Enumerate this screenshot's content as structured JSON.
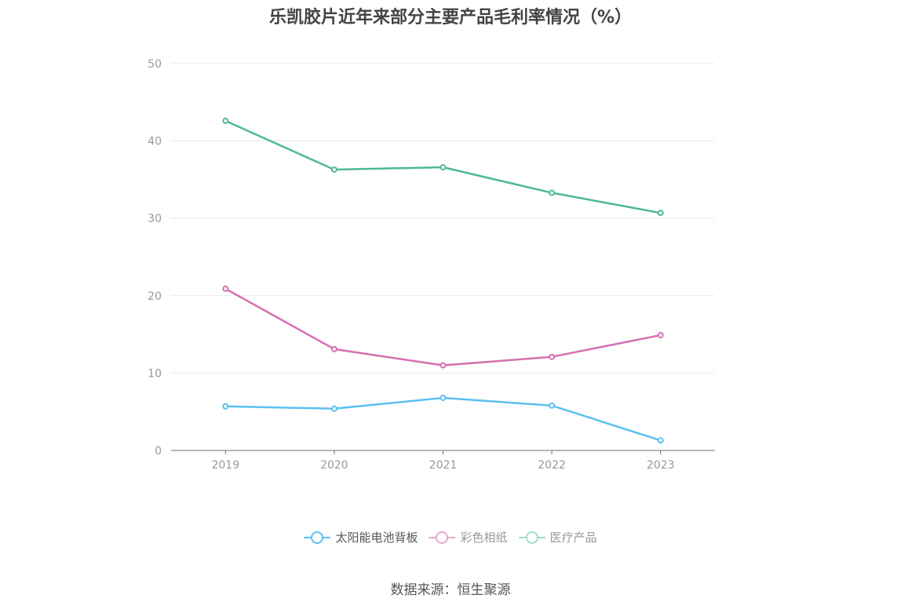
{
  "title": "乐凯胶片近年来部分主要产品毛利率情况（%）",
  "source": "数据来源：恒生聚源",
  "chart_data": {
    "type": "line",
    "title": "乐凯胶片近年来部分主要产品毛利率情况（%）",
    "x": [
      "2019",
      "2020",
      "2021",
      "2022",
      "2023"
    ],
    "ylim": [
      0,
      50
    ],
    "yticks": [
      0,
      10,
      20,
      30,
      40,
      50
    ],
    "grid": true,
    "legend_position": "bottom-center",
    "series": [
      {
        "name": "太阳能电池背板",
        "color": "#5bc0f0",
        "values": [
          5.7,
          5.4,
          6.8,
          5.8,
          1.3
        ]
      },
      {
        "name": "彩色相纸",
        "color": "#d56fb0",
        "values": [
          20.9,
          13.1,
          11.0,
          12.1,
          14.9
        ]
      },
      {
        "name": "医疗产品",
        "color": "#4db89a",
        "values": [
          42.6,
          36.3,
          36.6,
          33.3,
          30.7
        ]
      }
    ]
  },
  "legend": [
    {
      "label": "太阳能电池背板",
      "color": "#5bc0f0",
      "text_color": "#555555"
    },
    {
      "label": "彩色相纸",
      "color": "#e9a8cf",
      "text_color": "#999999"
    },
    {
      "label": "医疗产品",
      "color": "#a3dac9",
      "text_color": "#999999"
    }
  ]
}
